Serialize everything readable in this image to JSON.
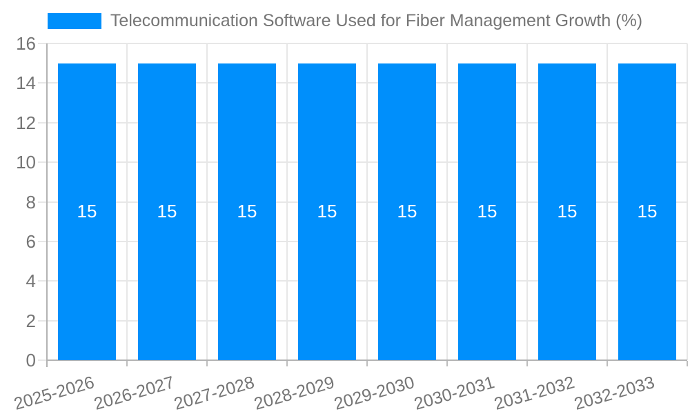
{
  "legend": {
    "items": [
      {
        "label": "Telecommunication Software Used for Fiber Management Growth (%)",
        "color": "#008ffb"
      }
    ]
  },
  "chart_data": {
    "type": "bar",
    "title": "Telecommunication Software Used for Fiber Management Growth (%)",
    "categories": [
      "2025-2026",
      "2026-2027",
      "2027-2028",
      "2028-2029",
      "2029-2030",
      "2030-2031",
      "2031-2032",
      "2032-2033"
    ],
    "values": [
      15,
      15,
      15,
      15,
      15,
      15,
      15,
      15
    ],
    "bar_labels": [
      "15",
      "15",
      "15",
      "15",
      "15",
      "15",
      "15",
      "15"
    ],
    "xlabel": "",
    "ylabel": "",
    "ylim": [
      0,
      16
    ],
    "yticks": [
      0,
      2,
      4,
      6,
      8,
      10,
      12,
      14,
      16
    ],
    "grid": true,
    "legend_position": "top",
    "x_label_rotation_deg": -16,
    "colors": {
      "bar": "#008ffb",
      "bar_label": "#ffffff",
      "axis_text": "#757575",
      "grid_line": "#e7e7e7",
      "axis_line": "#b3b3b3",
      "tick_mark": "#bdbdbd"
    }
  }
}
